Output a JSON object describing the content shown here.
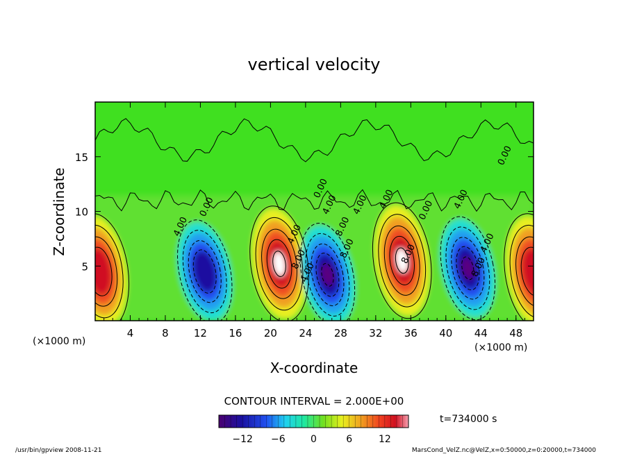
{
  "chart_data": {
    "type": "heatmap",
    "title": "vertical velocity",
    "xlabel": "X-coordinate",
    "ylabel": "Z-coordinate",
    "x_unit": "(×1000 m)",
    "x_unit_right": "(×1000 m)",
    "xlim": [
      0,
      50
    ],
    "ylim": [
      0,
      20
    ],
    "x_ticks": [
      4,
      8,
      12,
      16,
      20,
      24,
      28,
      32,
      36,
      40,
      44,
      48
    ],
    "y_ticks": [
      5,
      10,
      15
    ],
    "contour_interval_label": "CONTOUR INTERVAL = 2.000E+00",
    "colorbar": {
      "min": -16,
      "max": 16,
      "ticks": [
        -12,
        -6,
        0,
        6,
        12
      ],
      "tick_labels": [
        "−12",
        "−6",
        "0",
        "6",
        "12"
      ]
    },
    "contour_labels": [
      "4.00",
      "0.00",
      "4.00",
      "8.00",
      "4.00",
      "4.00",
      "8.00",
      "8.00",
      "4.00",
      "8.00",
      "4.00",
      "0.00",
      "4.00",
      "0.00",
      "8.00",
      "4.00",
      "0.00"
    ],
    "cells": [
      {
        "x": 0.5,
        "z": 4.5,
        "value": 14,
        "type": "updraft"
      },
      {
        "x": 12.5,
        "z": 4.5,
        "value": -14,
        "type": "downdraft"
      },
      {
        "x": 21,
        "z": 5.2,
        "value": 16,
        "type": "updraft"
      },
      {
        "x": 26.5,
        "z": 4.2,
        "value": -16,
        "type": "downdraft"
      },
      {
        "x": 35,
        "z": 5.5,
        "value": 16,
        "type": "updraft"
      },
      {
        "x": 42.5,
        "z": 4.8,
        "value": -16,
        "type": "downdraft"
      },
      {
        "x": 50,
        "z": 4.5,
        "value": 12,
        "type": "updraft"
      }
    ],
    "time_label": "t=734000 s"
  },
  "footer": {
    "left": "/usr/bin/gpview  2008-11-21",
    "right": "MarsCond_VelZ.nc@VelZ,x=0:50000,z=0:20000,t=734000"
  }
}
